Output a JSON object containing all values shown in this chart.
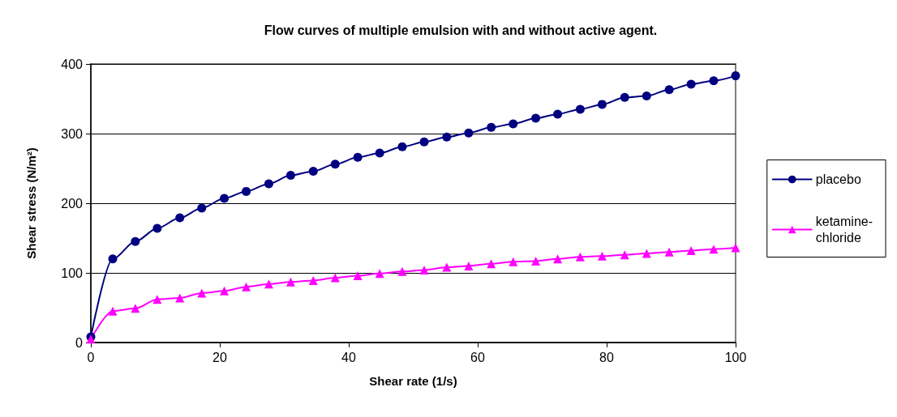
{
  "chart_data": {
    "type": "line",
    "title": "Flow curves of multiple emulsion with and without active agent.",
    "xlabel": "Shear rate (1/s)",
    "ylabel": "Shear stress (N/m²)",
    "x": [
      0,
      3.4,
      6.9,
      10.3,
      13.8,
      17.2,
      20.7,
      24.1,
      27.6,
      31,
      34.5,
      37.9,
      41.4,
      44.8,
      48.3,
      51.7,
      55.2,
      58.6,
      62.1,
      65.5,
      69,
      72.4,
      75.9,
      79.3,
      82.8,
      86.2,
      89.7,
      93.1,
      96.6,
      100
    ],
    "series": [
      {
        "name": "placebo",
        "color": "#000080",
        "marker": "circle",
        "values": [
          8,
          120,
          145,
          164,
          179,
          193,
          207,
          217,
          228,
          240,
          246,
          256,
          266,
          272,
          281,
          288,
          295,
          301,
          309,
          314,
          322,
          328,
          335,
          342,
          352,
          354,
          363,
          371,
          376,
          383
        ]
      },
      {
        "name": "ketamine-chloride",
        "color": "#ff00ff",
        "marker": "triangle",
        "values": [
          5,
          45,
          49,
          62,
          64,
          71,
          74,
          80,
          84,
          87,
          89,
          93,
          96,
          99,
          102,
          104,
          108,
          110,
          113,
          116,
          117,
          120,
          123,
          124,
          126,
          128,
          130,
          132,
          134,
          136
        ]
      }
    ],
    "xlim": [
      0,
      100
    ],
    "xticks": [
      0,
      20,
      40,
      60,
      80,
      100
    ],
    "ylim": [
      0,
      400
    ],
    "yticks": [
      0,
      100,
      200,
      300,
      400
    ],
    "grid": "y",
    "legend": "right",
    "line_style": "solid"
  }
}
